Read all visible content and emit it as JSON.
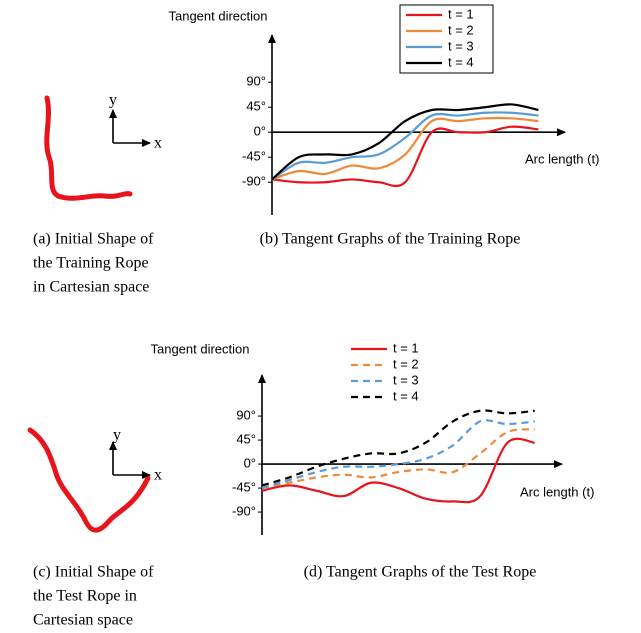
{
  "chart_data": [
    {
      "type": "line",
      "y_label": "Tangent direction",
      "x_label": "Arc length (t)",
      "x": [
        0,
        10,
        20,
        30,
        40,
        50,
        60,
        70,
        80,
        90,
        100
      ],
      "xlim": [
        0,
        110
      ],
      "ylim": [
        -149,
        175
      ],
      "yticks": [
        {
          "value": 90,
          "label": "90°"
        },
        {
          "value": 45,
          "label": "45°"
        },
        {
          "value": 0,
          "label": "0°"
        },
        {
          "value": -45,
          "label": "-45°"
        },
        {
          "value": -90,
          "label": "-90°"
        }
      ],
      "legend_box": true,
      "series": [
        {
          "name": "t = 1",
          "color": "#e8141b",
          "dashed": false,
          "values": [
            -85,
            -90,
            -90,
            -85,
            -90,
            -90,
            0,
            0,
            0,
            10,
            5
          ]
        },
        {
          "name": "t = 2",
          "color": "#ee8a3a",
          "dashed": false,
          "values": [
            -85,
            -70,
            -75,
            -60,
            -65,
            -40,
            20,
            20,
            25,
            25,
            20
          ]
        },
        {
          "name": "t = 3",
          "color": "#5a9bd5",
          "dashed": false,
          "values": [
            -85,
            -55,
            -55,
            -45,
            -40,
            -10,
            30,
            30,
            35,
            35,
            30
          ]
        },
        {
          "name": "t = 4",
          "color": "#000000",
          "dashed": false,
          "values": [
            -85,
            -45,
            -40,
            -40,
            -20,
            20,
            40,
            40,
            45,
            50,
            40
          ]
        }
      ]
    },
    {
      "type": "line",
      "y_label": "Tangent direction",
      "x_label": "Arc length (t)",
      "x": [
        0,
        10,
        20,
        30,
        40,
        50,
        60,
        70,
        80,
        90,
        100
      ],
      "xlim": [
        0,
        110
      ],
      "ylim": [
        -133,
        167
      ],
      "yticks": [
        {
          "value": 90,
          "label": "90°"
        },
        {
          "value": 45,
          "label": "45°"
        },
        {
          "value": 0,
          "label": "0°"
        },
        {
          "value": -45,
          "label": "-45°"
        },
        {
          "value": -90,
          "label": "-90°"
        }
      ],
      "legend_box": false,
      "series": [
        {
          "name": "t = 1",
          "color": "#e8141b",
          "dashed": false,
          "values": [
            -50,
            -40,
            -50,
            -60,
            -35,
            -45,
            -65,
            -70,
            -60,
            40,
            40
          ]
        },
        {
          "name": "t = 2",
          "color": "#ee8a3a",
          "dashed": true,
          "values": [
            -45,
            -35,
            -25,
            -20,
            -25,
            -15,
            -10,
            -15,
            20,
            60,
            65
          ]
        },
        {
          "name": "t = 3",
          "color": "#5a9bd5",
          "dashed": true,
          "values": [
            -45,
            -30,
            -15,
            -5,
            -5,
            0,
            10,
            35,
            80,
            75,
            80
          ]
        },
        {
          "name": "t = 4",
          "color": "#000000",
          "dashed": true,
          "values": [
            -40,
            -25,
            -5,
            10,
            20,
            20,
            40,
            80,
            100,
            95,
            100
          ]
        }
      ]
    }
  ],
  "insets": [
    {
      "x_label": "x",
      "y_label": "y"
    },
    {
      "x_label": "x",
      "y_label": "y"
    }
  ],
  "captions": [
    [
      "(a) Initial Shape of",
      "the Training Rope",
      "in Cartesian space"
    ],
    [
      "(b) Tangent Graphs of the Training Rope"
    ],
    [
      "(c) Initial Shape of",
      "the Test Rope in",
      "Cartesian space"
    ],
    [
      "(d) Tangent Graphs of the Test Rope"
    ]
  ]
}
